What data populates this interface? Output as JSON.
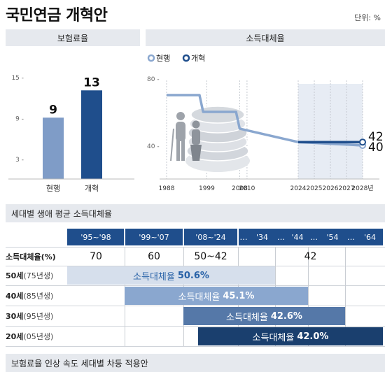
{
  "header": {
    "title": "국민연금 개혁안",
    "unit": "단위: %"
  },
  "premium_panel": {
    "title": "보험료율"
  },
  "replacement_panel": {
    "title": "소득대체율"
  },
  "generation_section": {
    "title": "세대별 생애 평균 소득대체율"
  },
  "footer": {
    "title": "보험료율 인상 속도 세대별 차등 적용안"
  },
  "chart_data": [
    {
      "type": "bar",
      "title": "보험료율",
      "categories": [
        "현행",
        "개혁"
      ],
      "values": [
        9,
        13
      ],
      "value_labels": [
        "9",
        "13"
      ],
      "yticks": [
        3,
        9,
        15
      ],
      "ytick_labels": [
        "3 -",
        "9 -",
        "15 -"
      ],
      "ylim": [
        0,
        16
      ],
      "colors": [
        "#7f9cc7",
        "#1f4e8c"
      ]
    },
    {
      "type": "line",
      "title": "소득대체율",
      "x_ticks": [
        "1988",
        "1999",
        "2008",
        "2010",
        "2024",
        "2025",
        "2026",
        "2027",
        "2028년"
      ],
      "yticks": [
        40,
        80
      ],
      "ytick_labels": [
        "40 -",
        "80 -"
      ],
      "ylim": [
        20,
        85
      ],
      "legend": [
        "현행",
        "개혁"
      ],
      "series": [
        {
          "name": "현행",
          "color": "#8aa7cf",
          "points": [
            [
              1988,
              70
            ],
            [
              1997,
              70
            ],
            [
              1998,
              60
            ],
            [
              2007,
              60
            ],
            [
              2008,
              50
            ],
            [
              2009,
              49.5
            ],
            [
              2010,
              49
            ],
            [
              2011,
              48.5
            ],
            [
              2012,
              48
            ],
            [
              2013,
              47.5
            ],
            [
              2014,
              47
            ],
            [
              2015,
              46.5
            ],
            [
              2016,
              46
            ],
            [
              2017,
              45.5
            ],
            [
              2018,
              45
            ],
            [
              2019,
              44.5
            ],
            [
              2020,
              44
            ],
            [
              2021,
              43.5
            ],
            [
              2022,
              43
            ],
            [
              2023,
              42.5
            ],
            [
              2024,
              42
            ],
            [
              2025,
              41.5
            ],
            [
              2026,
              41
            ],
            [
              2027,
              40.5
            ],
            [
              2028,
              40
            ]
          ],
          "end_label": "40"
        },
        {
          "name": "개혁",
          "color": "#1f4e8c",
          "points": [
            [
              2024,
              42
            ],
            [
              2025,
              42
            ],
            [
              2026,
              42
            ],
            [
              2027,
              42
            ],
            [
              2028,
              42
            ]
          ],
          "end_label": "42"
        }
      ]
    },
    {
      "type": "table",
      "title": "세대별 생애 평균 소득대체율",
      "eras": [
        "'95~'98",
        "'99~'07",
        "'08~'24",
        "…",
        "'34",
        "…",
        "'44",
        "…",
        "'54",
        "…",
        "'64"
      ],
      "rate_row": {
        "label": "소득대체율(%)",
        "values": [
          "70",
          "60",
          "50~42",
          "42"
        ]
      },
      "generations": [
        {
          "label": "50세",
          "birth": "(75년생)",
          "text": "소득대체율",
          "value": "50.6%",
          "color": "#d6dfec",
          "text_color": "#2a63a8"
        },
        {
          "label": "40세",
          "birth": "(85년생)",
          "text": "소득대체율",
          "value": "45.1%",
          "color": "#8aa7cf",
          "text_color": "#ffffff"
        },
        {
          "label": "30세",
          "birth": "(95년생)",
          "text": "소득대체율",
          "value": "42.6%",
          "color": "#5578a8",
          "text_color": "#ffffff"
        },
        {
          "label": "20세",
          "birth": "(05년생)",
          "text": "소득대체율",
          "value": "42.0%",
          "color": "#1a3f6e",
          "text_color": "#ffffff"
        }
      ]
    }
  ]
}
